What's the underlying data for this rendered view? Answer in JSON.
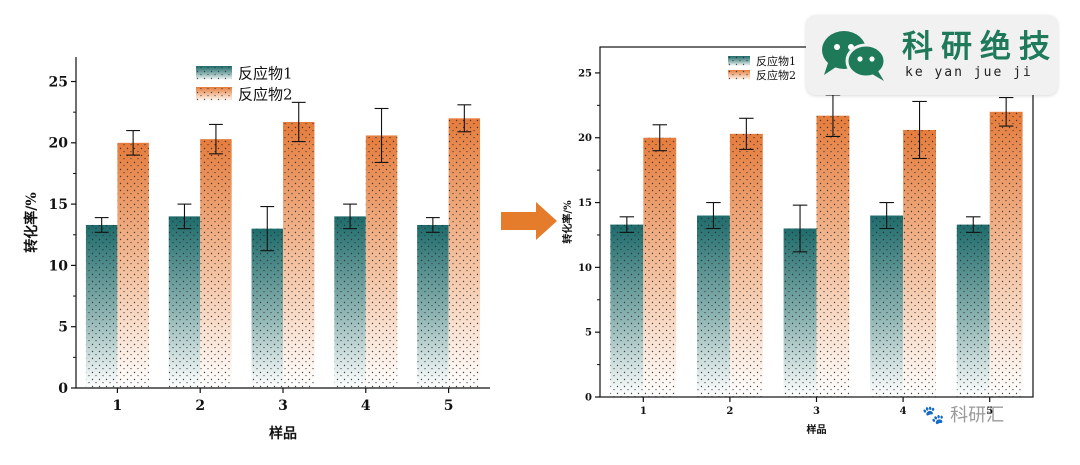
{
  "chart_data": [
    {
      "type": "bar",
      "title": "",
      "xlabel": "样品",
      "ylabel": "转化率/%",
      "ylim": [
        0,
        27
      ],
      "yticks": [
        0,
        5,
        10,
        15,
        20,
        25
      ],
      "categories": [
        "1",
        "2",
        "3",
        "4",
        "5"
      ],
      "legend_position": "top-center",
      "series": [
        {
          "name": "反应物1",
          "color": "#1e6b6b",
          "values": [
            13.3,
            14.0,
            13.0,
            14.0,
            13.3
          ],
          "errors": [
            0.6,
            1.0,
            1.8,
            1.0,
            0.6
          ]
        },
        {
          "name": "反应物2",
          "color": "#e57c3c",
          "values": [
            20.0,
            20.3,
            21.7,
            20.6,
            22.0
          ],
          "errors": [
            1.0,
            1.2,
            1.6,
            2.2,
            1.1
          ]
        }
      ]
    },
    {
      "type": "bar",
      "title": "",
      "xlabel": "样品",
      "ylabel": "转化率/%",
      "ylim": [
        0,
        27
      ],
      "yticks": [
        0,
        5,
        10,
        15,
        20,
        25
      ],
      "categories": [
        "1",
        "2",
        "3",
        "4",
        "5"
      ],
      "legend_position": "top-center",
      "series": [
        {
          "name": "反应物1",
          "color": "#1e6b6b",
          "values": [
            13.3,
            14.0,
            13.0,
            14.0,
            13.3
          ],
          "errors": [
            0.6,
            1.0,
            1.8,
            1.0,
            0.6
          ]
        },
        {
          "name": "反应物2",
          "color": "#e57c3c",
          "values": [
            20.0,
            20.3,
            21.7,
            20.6,
            22.0
          ],
          "errors": [
            1.0,
            1.2,
            1.6,
            2.2,
            1.1
          ]
        }
      ]
    }
  ],
  "arrow": {
    "color": "#e57c2c"
  },
  "logo": {
    "title": "科研绝技",
    "subtitle": "ke yan jue ji",
    "color": "#1f7a5a"
  },
  "watermark": {
    "text": "科研汇"
  }
}
